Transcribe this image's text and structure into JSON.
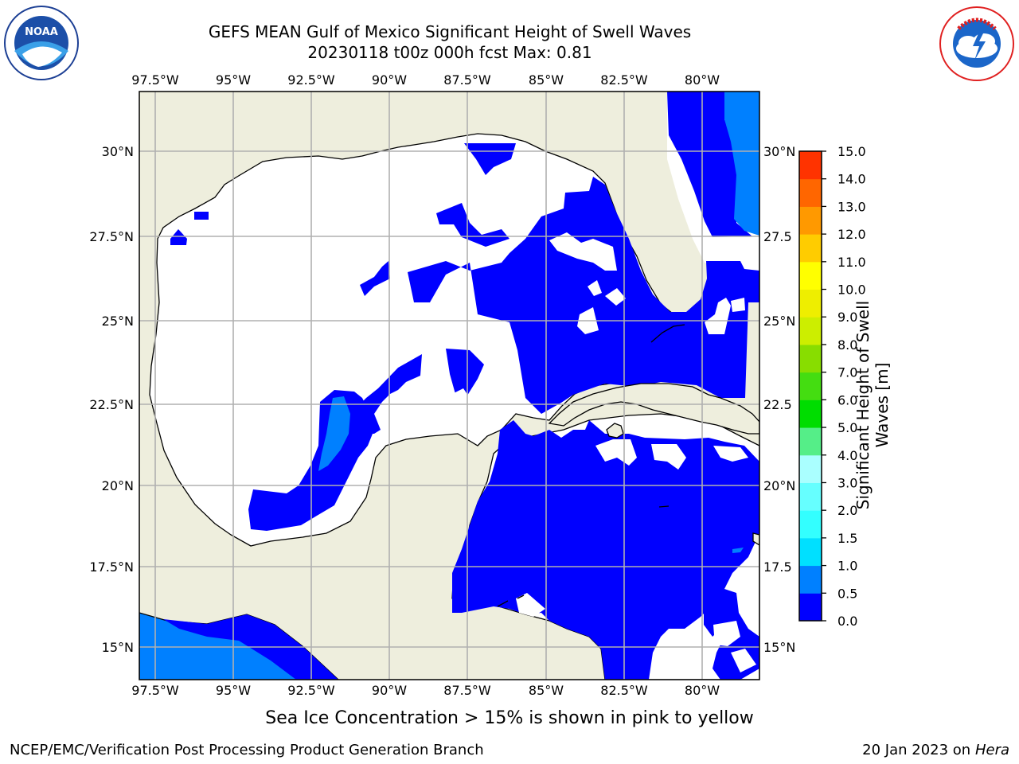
{
  "header": {
    "title_line1": "GEFS MEAN Gulf of Mexico Significant Height of Swell Waves",
    "title_line2": "20230118 t00z 000h fcst   Max: 0.81"
  },
  "logos": {
    "left": "NOAA",
    "left_ring": "NATIONAL OCEANIC AND ATMOSPHERIC ADMINISTRATION · U.S. DEPARTMENT OF COMMERCE",
    "right_ring": "NATIONAL WEATHER SERVICE"
  },
  "axes": {
    "lon_labels": [
      "97.5°W",
      "95°W",
      "92.5°W",
      "90°W",
      "87.5°W",
      "85°W",
      "82.5°W",
      "80°W"
    ],
    "lat_labels_left": [
      "30°N",
      "27.5°N",
      "25°N",
      "22.5°N",
      "20°N",
      "17.5°N",
      "15°N"
    ],
    "lat_labels_right": [
      "30°N",
      "27.5",
      "25°N",
      "22.5",
      "20°N",
      "17.5",
      "15°N"
    ]
  },
  "colorbar": {
    "label": "Significant Height of Swell Waves [m]",
    "ticks": [
      "0.0",
      "0.5",
      "1.0",
      "1.5",
      "2.0",
      "3.0",
      "4.0",
      "5.0",
      "6.0",
      "7.0",
      "8.0",
      "9.0",
      "10.0",
      "11.0",
      "12.0",
      "13.0",
      "14.0",
      "15.0"
    ],
    "colors": [
      "#0000ff",
      "#0080ff",
      "#00e0ff",
      "#33ffff",
      "#66ffff",
      "#aaffff",
      "#55ee88",
      "#00dd00",
      "#44dd11",
      "#88dd00",
      "#ccee00",
      "#eeee00",
      "#ffff00",
      "#ffcc00",
      "#ff9900",
      "#ff6600",
      "#ff3300",
      "#ff0000"
    ]
  },
  "colors": {
    "land": "#eeeedd",
    "sea_white": "#ffffff",
    "swell_low": "#0000ff",
    "swell_mid": "#0080ff",
    "grid": "#b0b0b0"
  },
  "footer": {
    "note": "Sea Ice Concentration > 15% is shown in pink to yellow",
    "credit": "NCEP/EMC/Verification Post Processing Product Generation Branch",
    "date": "20 Jan 2023 on",
    "host": "Hera"
  }
}
